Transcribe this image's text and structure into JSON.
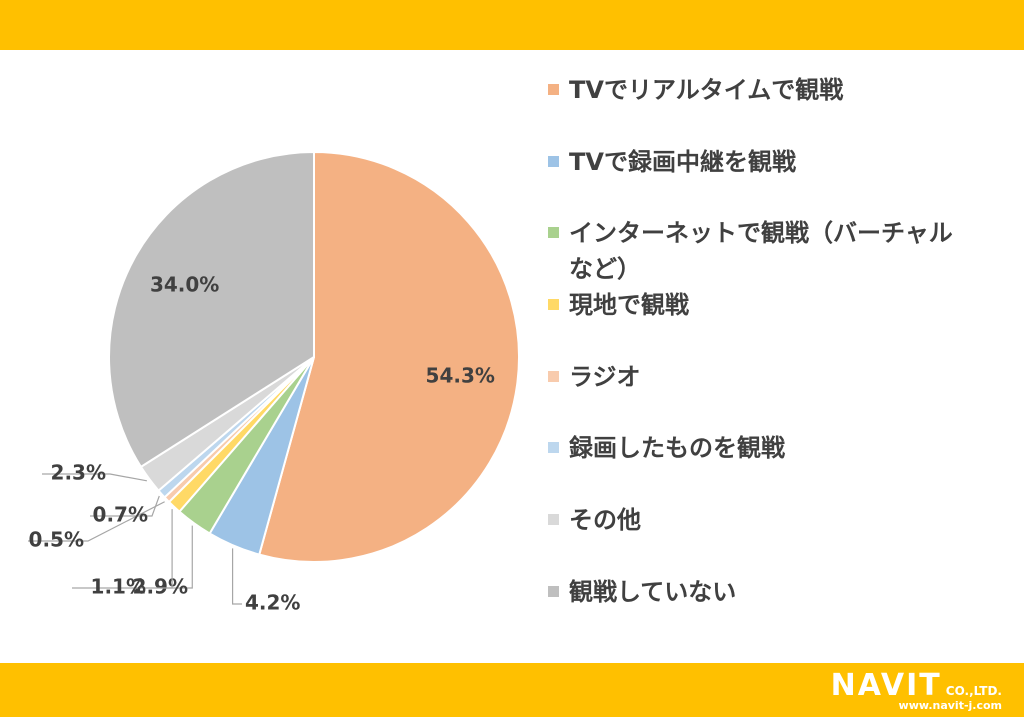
{
  "chart_data": {
    "type": "pie",
    "categories": [
      "TVでリアルタイムで観戦",
      "TVで録画中継を観戦",
      "インターネットで観戦（バーチャルなど）",
      "現地で観戦",
      "ラジオ",
      "録画したものを観戦",
      "その他",
      "観戦していない"
    ],
    "values": [
      54.3,
      4.2,
      2.9,
      1.1,
      0.5,
      0.7,
      2.3,
      34.0
    ],
    "value_labels": [
      "54.3%",
      "4.2%",
      "2.9%",
      "1.1%",
      "0.5%",
      "0.7%",
      "2.3%",
      "34.0%"
    ],
    "colors": [
      "#f4b183",
      "#9dc3e6",
      "#a9d18e",
      "#ffd966",
      "#f8cbad",
      "#bdd7ee",
      "#d9d9d9",
      "#bfbfbf"
    ],
    "legend": "right"
  },
  "logo": {
    "name": "NAVIT",
    "suffix": "CO.,LTD.",
    "url": "www.navit-j.com"
  }
}
